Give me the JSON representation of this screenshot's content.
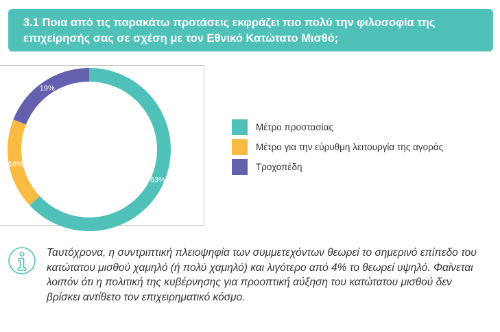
{
  "question": {
    "text": "3.1 Ποια από τις παρακάτω προτάσεις εκφράζει πιο πολύ την φιλοσοφία της επιχείρησής σας σε σχέση με τον Εθνικό Κατώτατο Μισθό;"
  },
  "chart_data": {
    "type": "pie",
    "donut": true,
    "categories": [
      "Μέτρο προστασίας",
      "Μέτρο για την εύρυθμη λειτουργία της αγοράς",
      "Τροχοπέδη"
    ],
    "values": [
      63,
      18,
      19
    ],
    "data_labels": [
      "63%",
      "18%",
      "19%"
    ],
    "colors": [
      "#4fc1b9",
      "#f9bb41",
      "#6460ad"
    ],
    "legend_position": "right"
  },
  "note": {
    "icon": "info-icon",
    "text": "Ταυτόχρονα, η συντριπτική πλειοψηφία των συμμετεχόντων θεωρεί το σημερινό επίπεδο του κατώτατου μισθού χαμηλό (ή πολύ χαμηλό) και λιγότερο από 4% το θεωρεί υψηλό. Φαίνεται λοιπόν ότι η πολιτική της κυβέρνησης για προοπτική αύξηση του κατώτατου μισθού δεν βρίσκει αντίθετο τον επιχειρηματικό κόσμο."
  },
  "colors": {
    "banner": "#4fc1b9",
    "accent": "#4fc1b9"
  }
}
